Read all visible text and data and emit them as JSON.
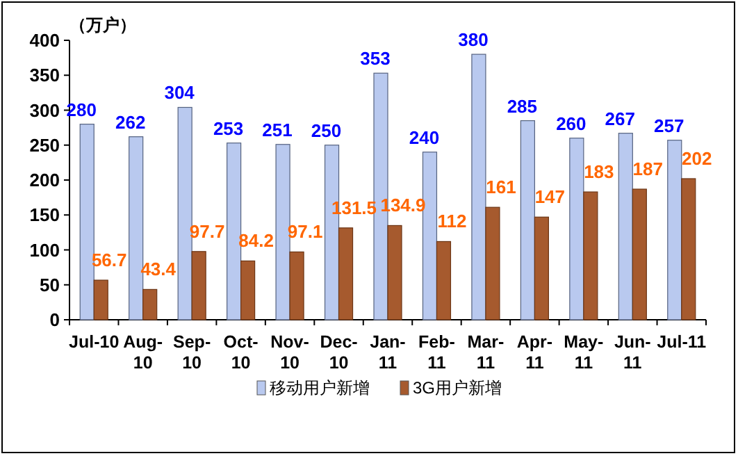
{
  "chart_data": {
    "type": "bar",
    "ylabel": "（万户）",
    "categories": [
      "Jul-10",
      "Aug-10",
      "Sep-10",
      "Oct-10",
      "Nov-10",
      "Dec-10",
      "Jan-11",
      "Feb-11",
      "Mar-11",
      "Apr-11",
      "May-11",
      "Jun-11",
      "Jul-11"
    ],
    "series": [
      {
        "name": "移动用户新增",
        "color": "#b9c9ef",
        "values": [
          280,
          262,
          304,
          253,
          251,
          250,
          353,
          240,
          380,
          285,
          260,
          267,
          257
        ]
      },
      {
        "name": "3G用户新增",
        "color": "#a65a2e",
        "values": [
          56.7,
          43.4,
          97.7,
          84.2,
          97.1,
          131.5,
          134.9,
          112,
          161,
          147,
          183,
          187,
          202
        ]
      }
    ],
    "ylim": [
      0,
      400
    ],
    "yticks": [
      0,
      50,
      100,
      150,
      200,
      250,
      300,
      350,
      400
    ],
    "data_labels": true,
    "legend": "bottom",
    "grid": false
  }
}
